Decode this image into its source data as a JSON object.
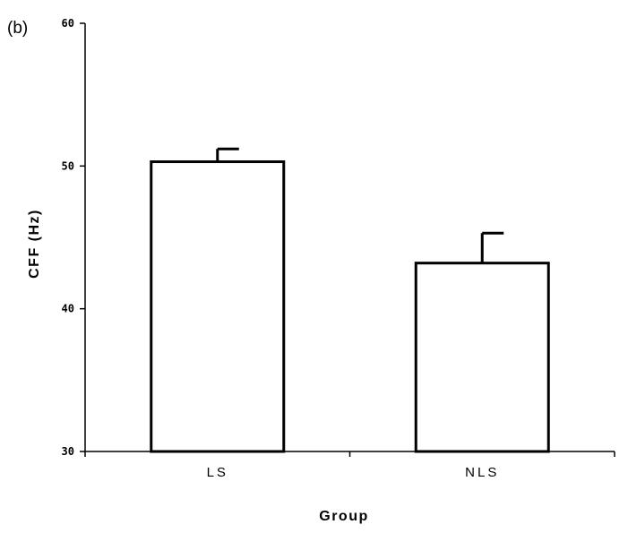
{
  "panel_label": "(b)",
  "chart_data": {
    "type": "bar",
    "categories": [
      "LS",
      "NLS"
    ],
    "values": [
      50.3,
      43.2
    ],
    "error_upper": [
      51.2,
      45.3
    ],
    "xlabel": "Group",
    "ylabel": "CFF (Hz)",
    "ylim": [
      30,
      60
    ],
    "yticks": [
      30,
      40,
      50,
      60
    ],
    "ytick_labels": [
      "30",
      "40",
      "50",
      "60"
    ],
    "category_labels": [
      "LS",
      "NLS"
    ],
    "grid": false,
    "legend": "none",
    "bar_fill": "#ffffff",
    "line_color": "#000000"
  }
}
